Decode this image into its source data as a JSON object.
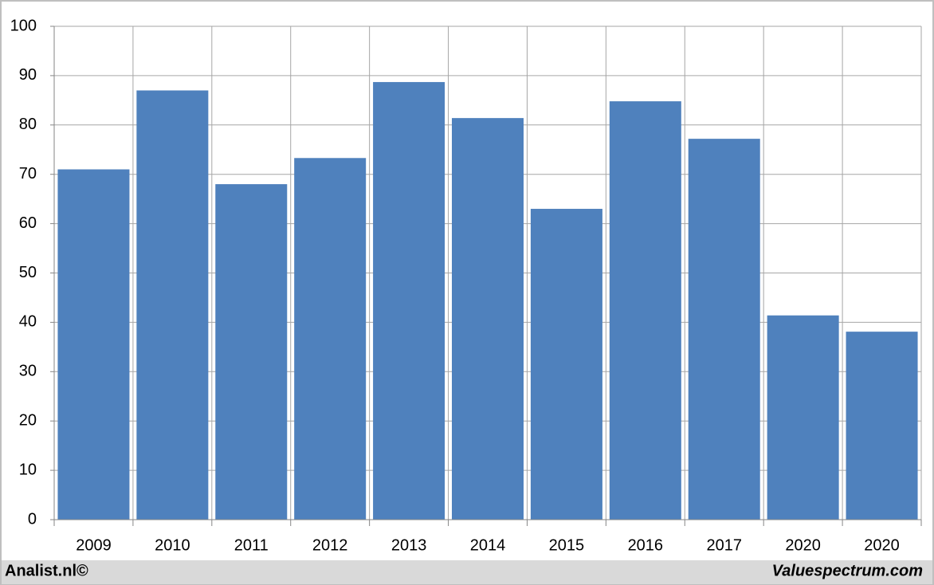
{
  "chart_data": {
    "type": "bar",
    "categories": [
      "2009",
      "2010",
      "2011",
      "2012",
      "2013",
      "2014",
      "2015",
      "2016",
      "2017",
      "2020",
      "2020"
    ],
    "values": [
      71,
      87,
      68,
      73.3,
      88.7,
      81.4,
      63,
      84.8,
      77.2,
      41.4,
      38.1
    ],
    "color": "#4f81bd",
    "ylim": [
      0,
      100
    ],
    "yticks": [
      0,
      10,
      20,
      30,
      40,
      50,
      60,
      70,
      80,
      90,
      100
    ],
    "grid": true,
    "annotations": [
      "Analist.nl©",
      "Valuespectrum.com"
    ]
  }
}
